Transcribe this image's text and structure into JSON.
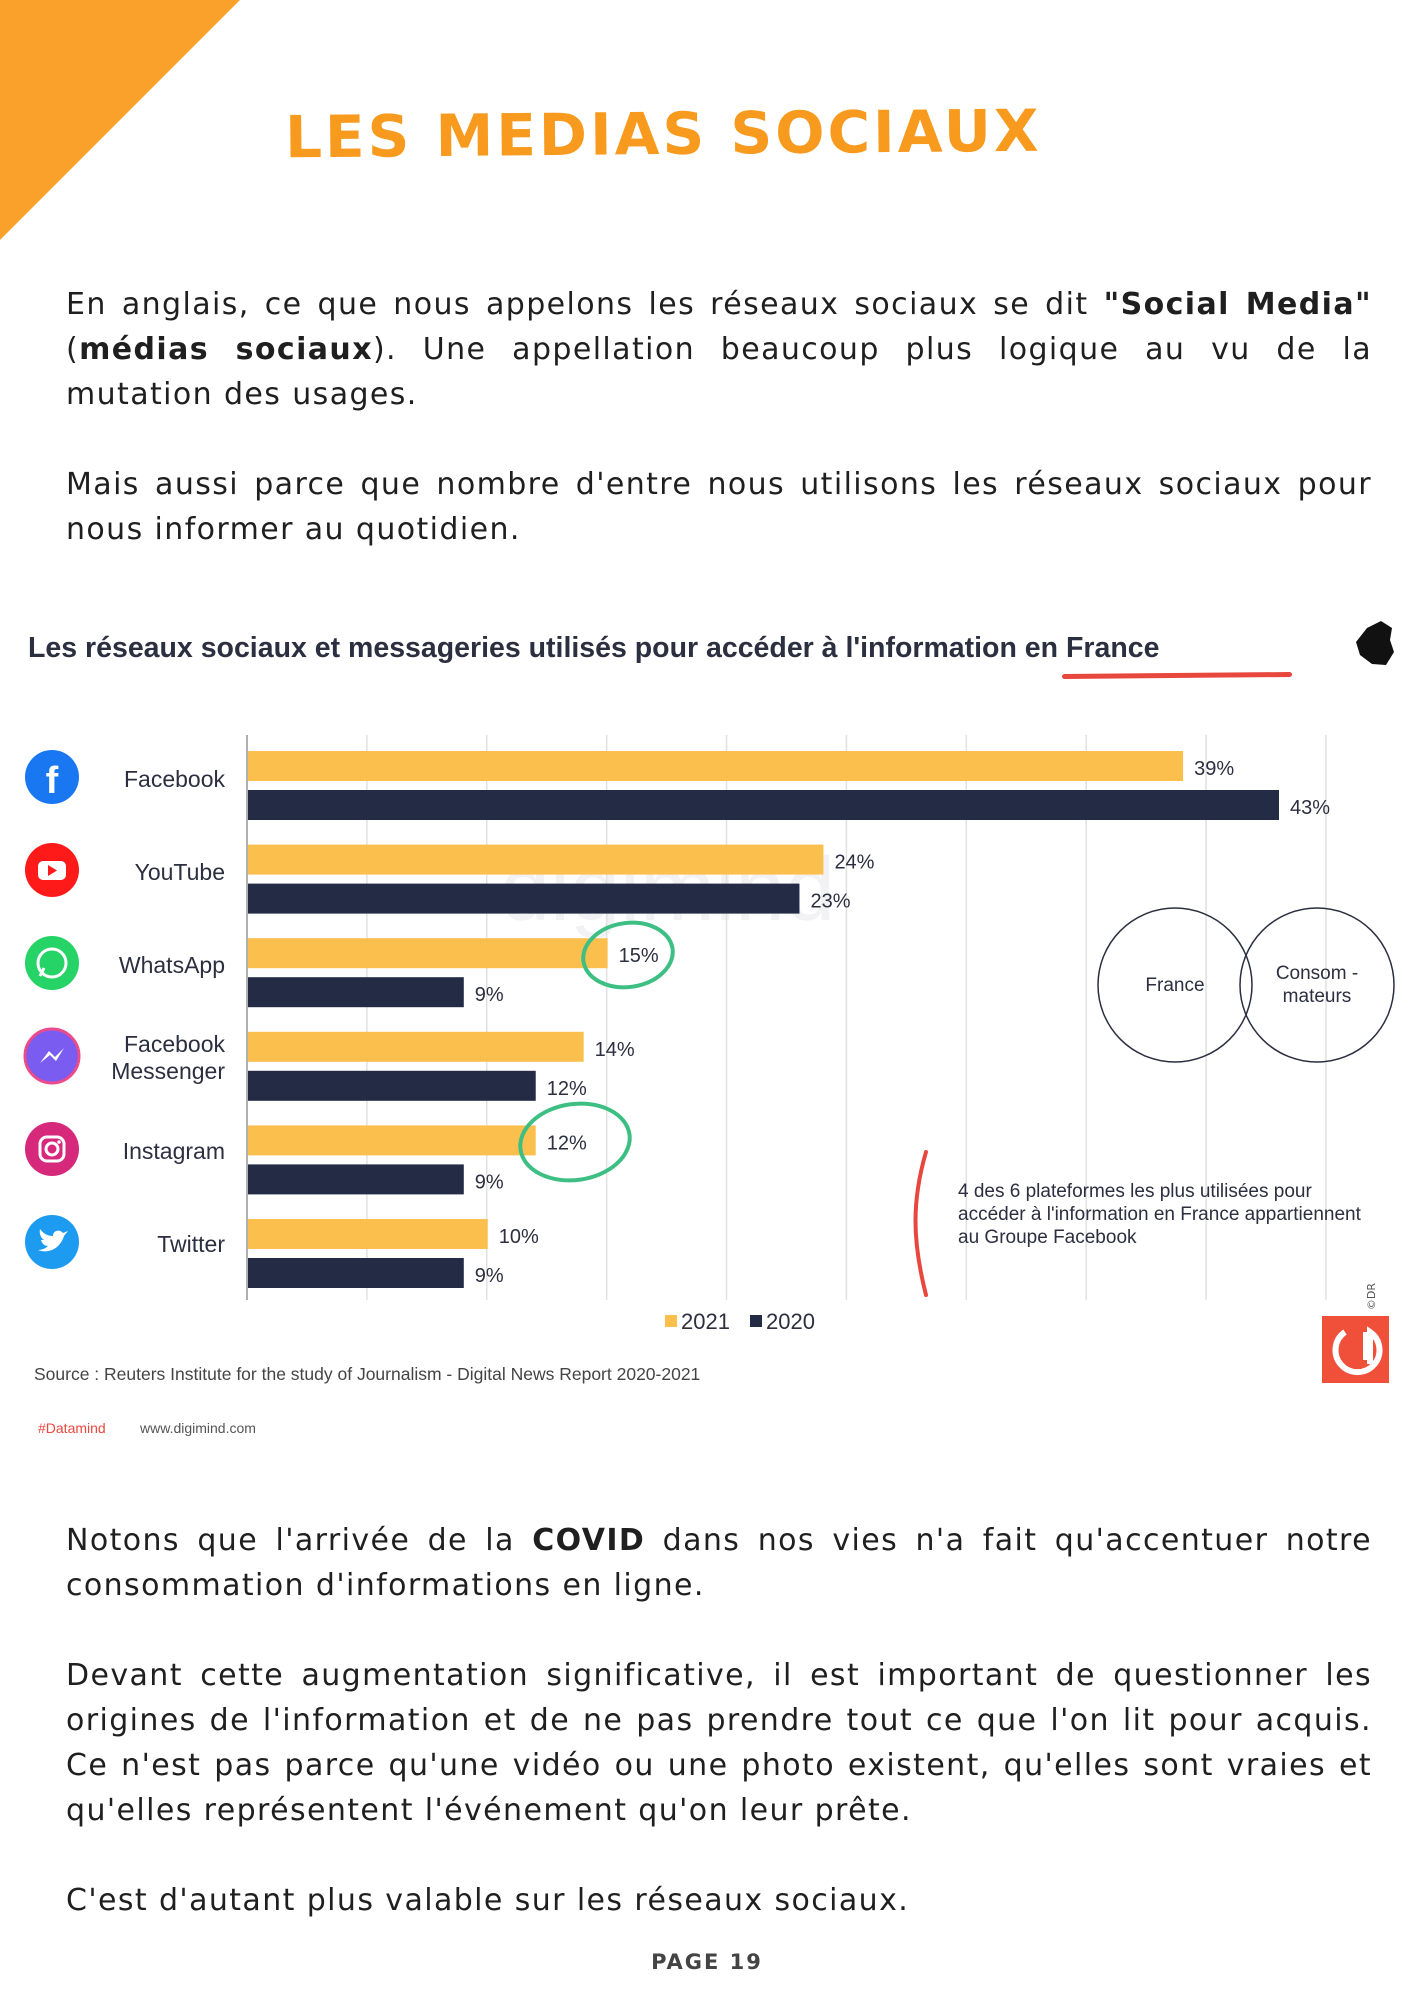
{
  "page": {
    "title": "LES MEDIAS SOCIAUX",
    "p1": [
      "En anglais, ce que nous appelons les réseaux sociaux se dit ",
      "\"Social Media\"",
      " (",
      "médias sociaux",
      "). Une appellation beaucoup plus logique au vu de la mutation des usages."
    ],
    "p2": "Mais aussi parce que nombre d'entre nous utilisons les réseaux sociaux pour nous informer au quotidien.",
    "p3": [
      "Notons que l'arrivée de la ",
      "COVID",
      " dans nos vies n'a fait qu'accentuer notre consommation d'informations en ligne."
    ],
    "p4": "Devant cette augmentation significative, il est important de questionner les origines de l'information et de ne pas prendre tout ce que l'on lit pour acquis. Ce n'est pas parce qu'une vidéo ou une photo existent, qu'elles sont vraies et qu'elles représentent l'événement qu'on leur prête.",
    "p5": "C'est d'autant plus valable sur les réseaux sociaux.",
    "footer": "PAGE 19"
  },
  "chart_data": {
    "type": "bar",
    "orientation": "horizontal",
    "title": "Les réseaux sociaux et messageries utilisés pour accéder à l'information en France",
    "categories": [
      "Facebook",
      "YouTube",
      "WhatsApp",
      "Facebook\nMessenger",
      "Instagram",
      "Twitter"
    ],
    "series": [
      {
        "name": "2021",
        "color": "#fbbf4e",
        "values": [
          39,
          24,
          15,
          14,
          12,
          10
        ]
      },
      {
        "name": "2020",
        "color": "#232b45",
        "values": [
          43,
          23,
          9,
          12,
          9,
          9
        ]
      }
    ],
    "xlim": [
      0,
      45
    ],
    "grid": true,
    "legend": "bottom",
    "value_suffix": "%",
    "highlighted": [
      {
        "category": "WhatsApp",
        "series": "2021"
      },
      {
        "category": "Instagram",
        "series": "2021"
      }
    ],
    "annotation": "4 des 6 plateformes les plus utilisées pour accéder à l'information en France appartiennent au Groupe Facebook",
    "venn": [
      "France",
      "Consom - mateurs"
    ],
    "watermark": "digimind",
    "source": "Source :  Reuters Institute for the study of Journalism - Digital News Report 2020-2021",
    "hashtag": "#Datamind",
    "website": "www.digimind.com",
    "credit": "©DR"
  },
  "icons": [
    "facebook-icon",
    "youtube-icon",
    "whatsapp-icon",
    "messenger-icon",
    "instagram-icon",
    "twitter-icon",
    "france-map-icon",
    "digimind-logo"
  ]
}
